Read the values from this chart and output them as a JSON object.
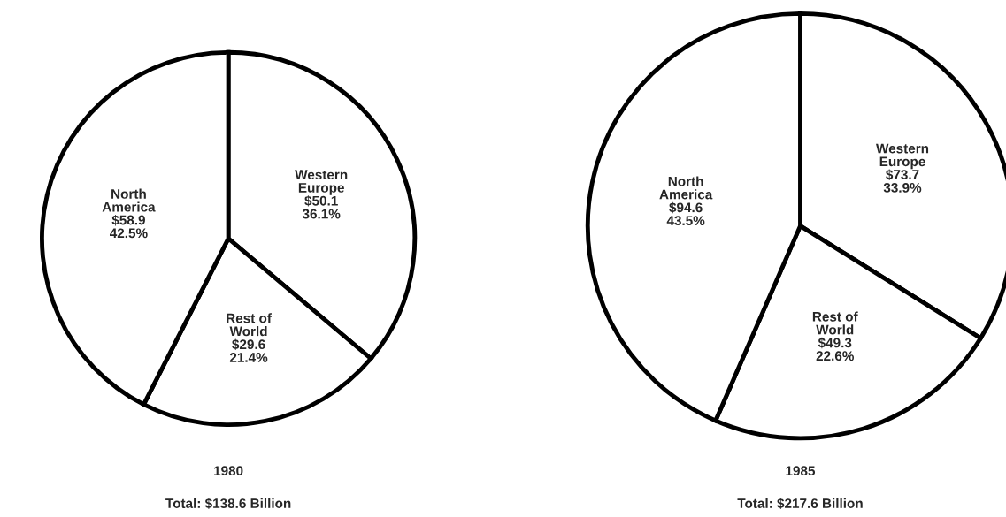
{
  "chart_data": [
    {
      "type": "pie",
      "title": "1980",
      "annotations": [
        "Total: $138.6 Billion"
      ],
      "categories": [
        "Western\nEurope",
        "Rest of\nWorld",
        "North\nAmerica"
      ],
      "values": [
        50.1,
        29.6,
        58.9
      ],
      "value_labels": [
        "$50.1\n36.1%",
        "$29.6\n21.4%",
        "$58.9\n42.5%"
      ],
      "colors": [
        "#ffffff",
        "#ffffff",
        "#ffffff"
      ]
    },
    {
      "type": "pie",
      "title": "1985",
      "annotations": [
        "Total: $217.6 Billion"
      ],
      "categories": [
        "Western\nEurope",
        "Rest of\nWorld",
        "North\nAmerica"
      ],
      "values": [
        73.7,
        49.3,
        94.6
      ],
      "value_labels": [
        "$73.7\n33.9%",
        "$49.3\n22.6%",
        "$94.6\n43.5%"
      ],
      "colors": [
        "#ffffff",
        "#ffffff",
        "#ffffff"
      ]
    }
  ]
}
